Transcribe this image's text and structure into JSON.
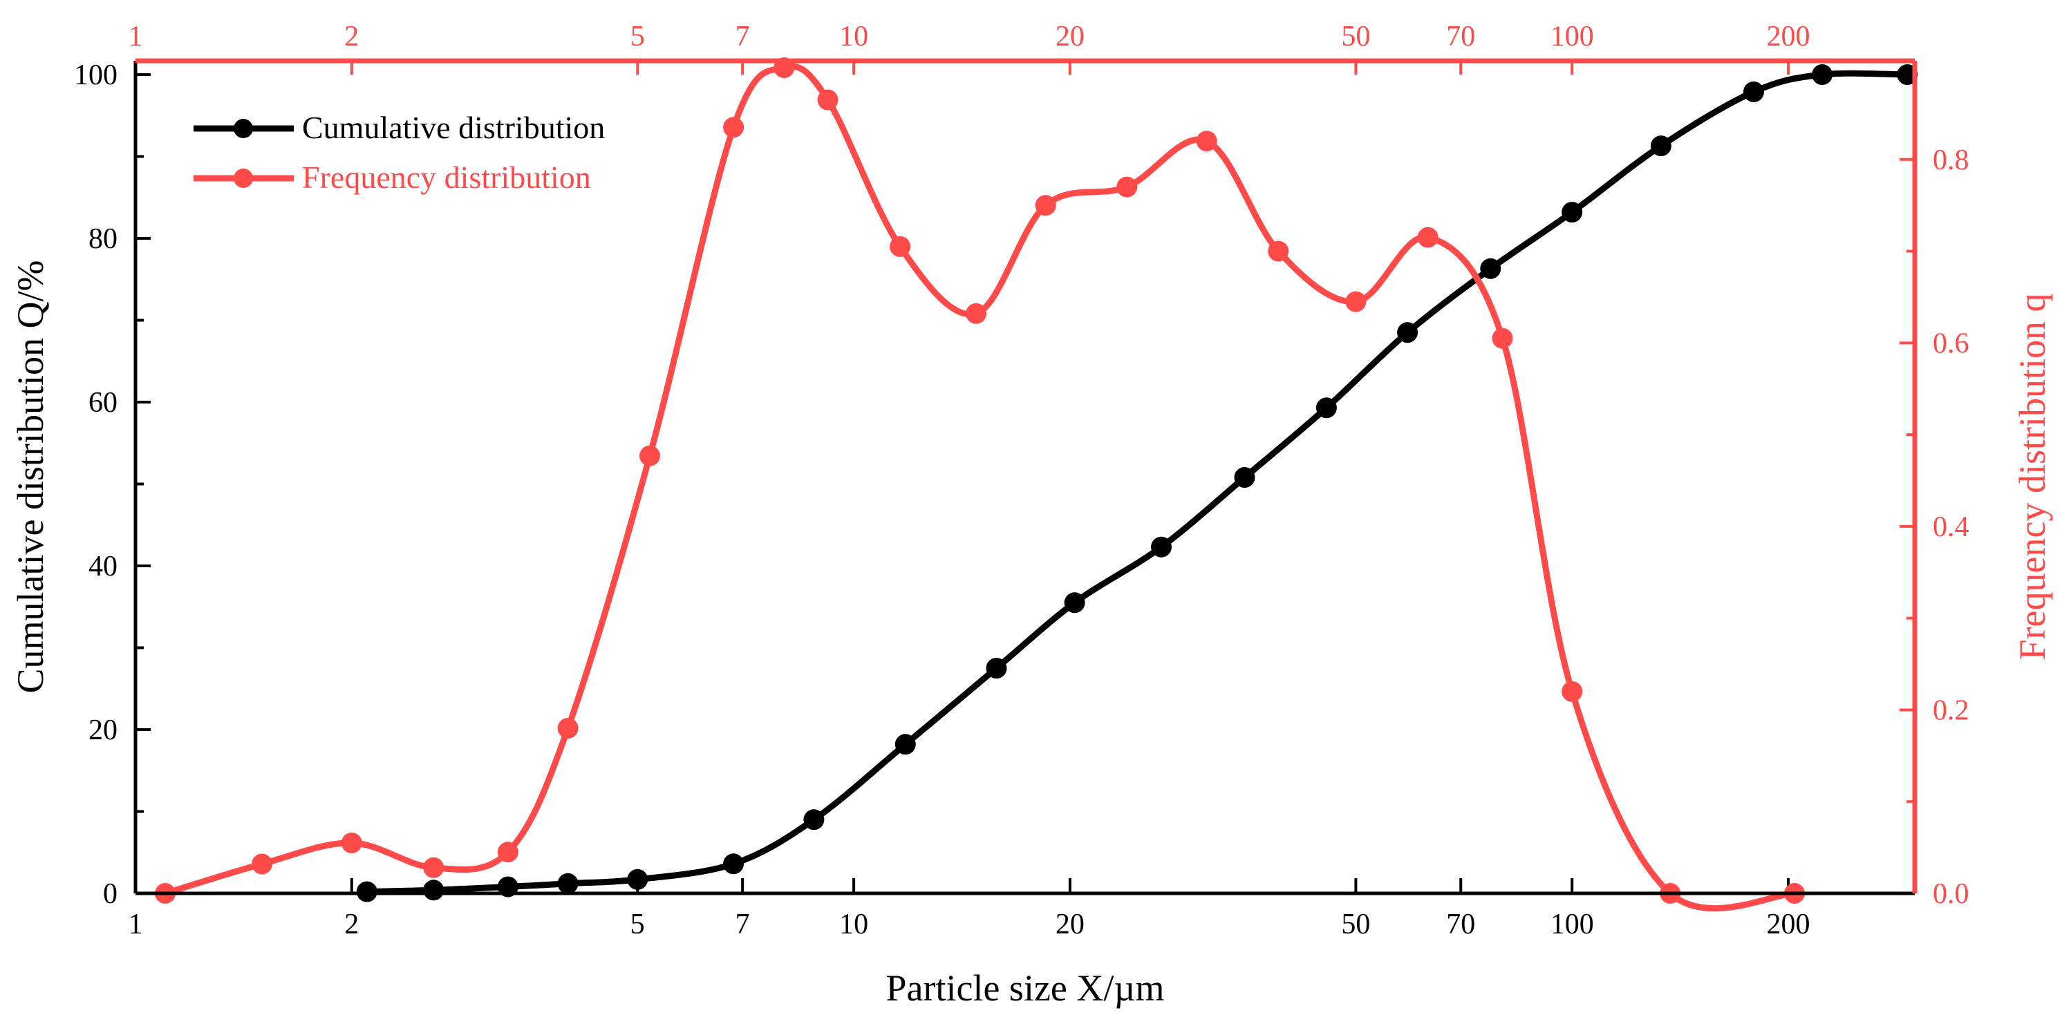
{
  "chart_data": {
    "type": "line",
    "xlabel": "Particle size  X/µm",
    "ylabel_left": "Cumulative distribution Q/%",
    "ylabel_right": "Frequency distribution q",
    "x_scale": "log",
    "xlim": [
      1,
      300
    ],
    "ylim_left": [
      0,
      100
    ],
    "ylim_right": [
      0,
      0.9
    ],
    "x_ticks_bottom": [
      1,
      2,
      5,
      7,
      10,
      20,
      50,
      70,
      100,
      200
    ],
    "x_ticks_top": [
      1,
      2,
      5,
      7,
      10,
      20,
      50,
      70,
      100,
      200
    ],
    "y_ticks_left": [
      0,
      20,
      40,
      60,
      80,
      100
    ],
    "y_ticks_right": [
      "0.0",
      "0.2",
      "0.4",
      "0.6",
      "0.8"
    ],
    "colors": {
      "cumulative": "#000000",
      "frequency": "#ff4a4a"
    },
    "series": [
      {
        "name": "Cumulative distribution",
        "axis": "left",
        "color": "#000000",
        "x": [
          2.1,
          2.6,
          3.3,
          4.0,
          5.0,
          6.8,
          8.8,
          11.8,
          15.8,
          20.3,
          26.8,
          35.0,
          45.5,
          59.0,
          77.0,
          100.0,
          133.0,
          179.0,
          223.0,
          293.0
        ],
        "values": [
          0.2,
          0.4,
          0.8,
          1.2,
          1.7,
          3.6,
          9.0,
          18.2,
          27.5,
          35.5,
          42.3,
          50.8,
          59.3,
          68.5,
          76.3,
          83.2,
          91.3,
          97.9,
          100.0,
          100.0
        ]
      },
      {
        "name": "Frequency distribution",
        "axis": "right",
        "color": "#ff4a4a",
        "x": [
          1.1,
          1.5,
          2.0,
          2.6,
          3.3,
          4.0,
          5.2,
          6.8,
          8.0,
          9.2,
          11.6,
          14.8,
          18.5,
          24.0,
          31.0,
          39.0,
          50.0,
          63.0,
          80.0,
          100.0,
          137.0,
          204.0
        ],
        "values": [
          0.0,
          0.032,
          0.055,
          0.028,
          0.045,
          0.18,
          0.477,
          0.835,
          0.9,
          0.865,
          0.705,
          0.632,
          0.75,
          0.77,
          0.82,
          0.7,
          0.645,
          0.715,
          0.605,
          0.22,
          0.0,
          0.0
        ]
      }
    ]
  }
}
